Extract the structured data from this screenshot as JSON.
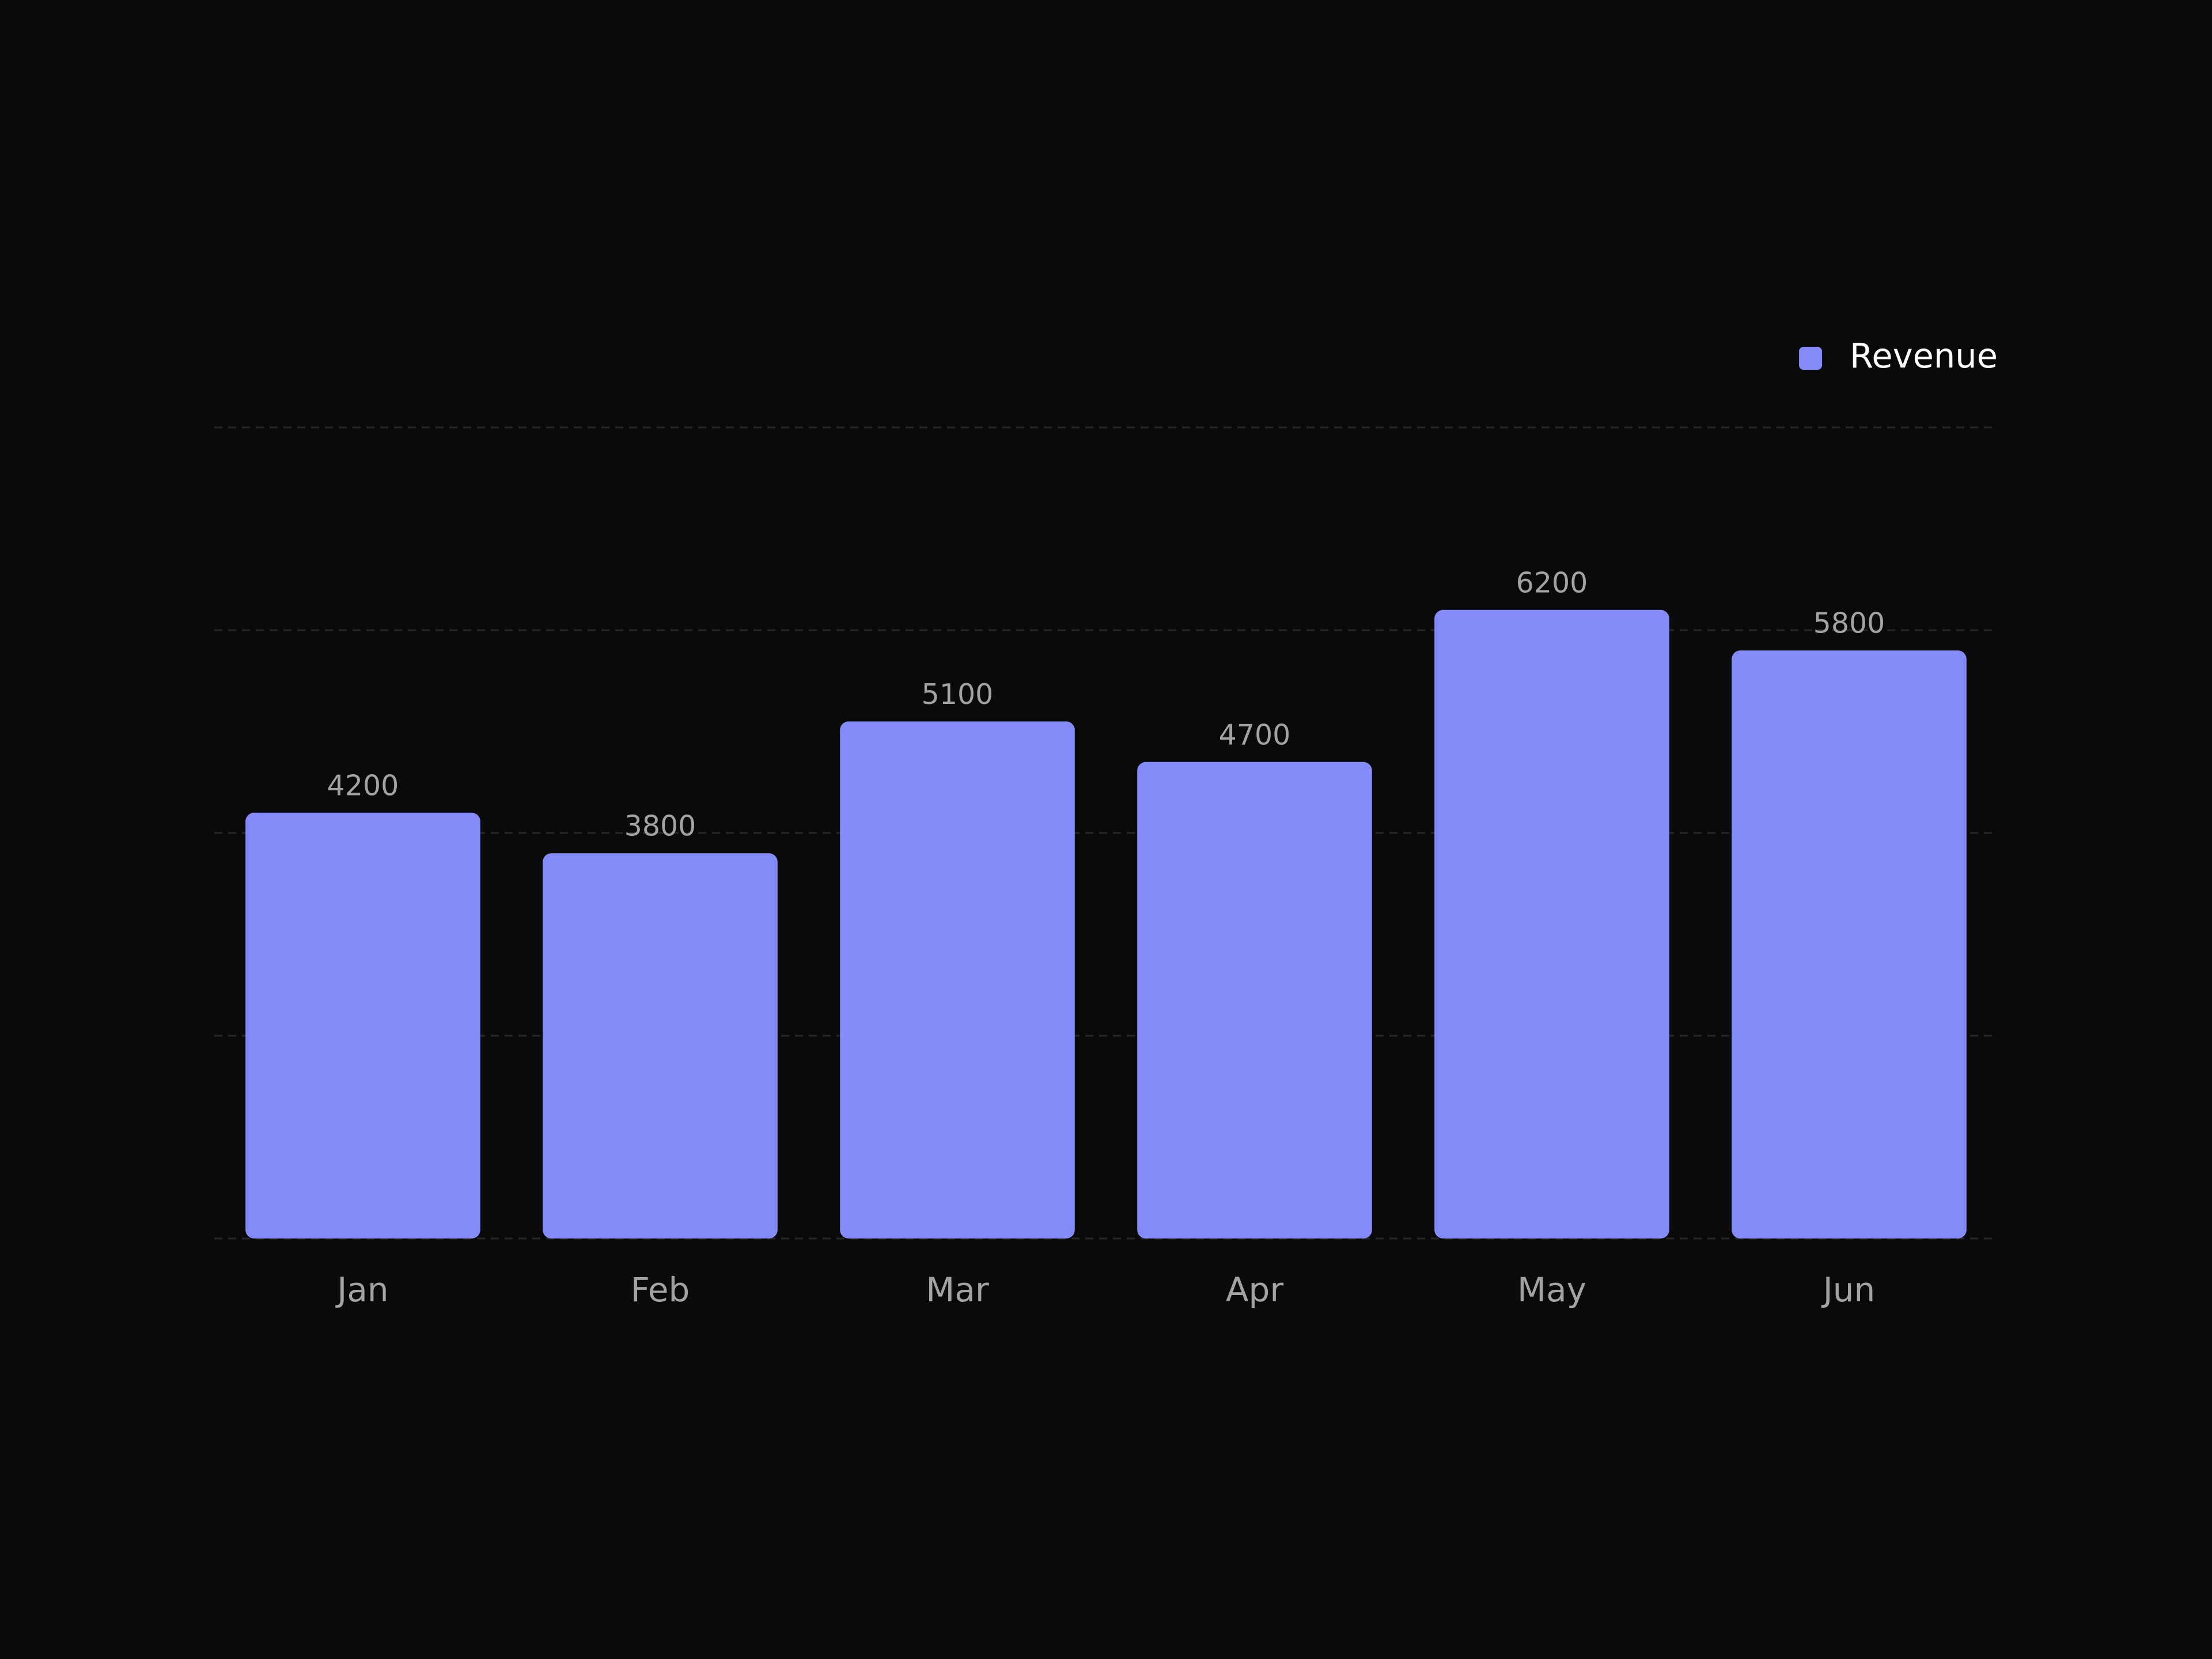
{
  "chart_data": {
    "type": "bar",
    "categories": [
      "Jan",
      "Feb",
      "Mar",
      "Apr",
      "May",
      "Jun"
    ],
    "series": [
      {
        "name": "Revenue",
        "color": "#848bf8",
        "values": [
          4200,
          3800,
          5100,
          4700,
          6200,
          5800
        ]
      }
    ],
    "ylim": [
      0,
      8000
    ],
    "yticks": [
      0,
      2000,
      4000,
      6000,
      8000
    ],
    "grid": true,
    "legend": "top-right"
  }
}
